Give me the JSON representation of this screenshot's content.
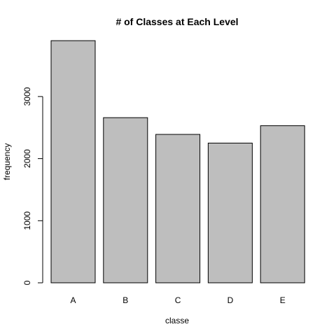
{
  "chart_data": {
    "type": "bar",
    "title": "# of Classes at Each Level",
    "xlabel": "classe",
    "ylabel": "frequency",
    "categories": [
      "A",
      "B",
      "C",
      "D",
      "E"
    ],
    "values": [
      3900,
      2660,
      2390,
      2250,
      2530
    ],
    "ylim": [
      0,
      3900
    ],
    "yticks": [
      0,
      1000,
      2000,
      3000
    ],
    "grid": false,
    "legend": "none"
  }
}
